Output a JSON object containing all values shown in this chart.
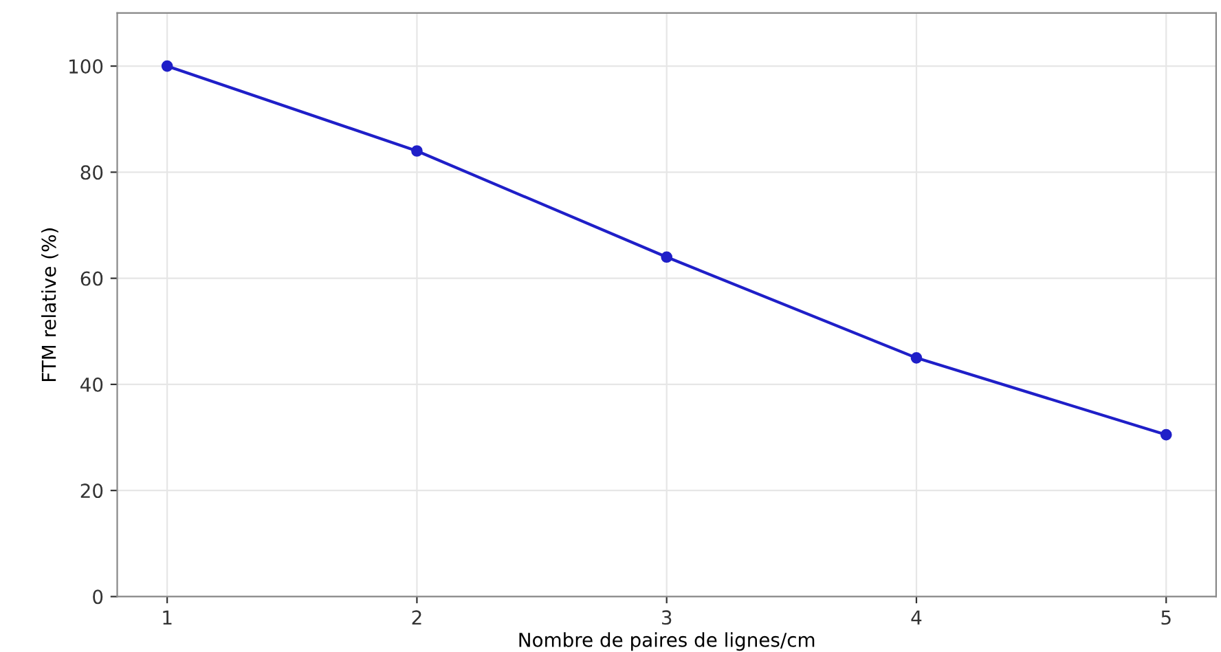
{
  "chart_data": {
    "type": "line",
    "xlabel": "Nombre de paires de lignes/cm",
    "ylabel": "FTM relative (%)",
    "x": [
      1,
      2,
      3,
      4,
      5
    ],
    "series": [
      {
        "color": "#1f1fc8",
        "values": [
          100,
          84,
          64,
          45,
          30.5
        ]
      }
    ],
    "xlim": [
      0.8,
      5.2
    ],
    "ylim": [
      0,
      110
    ],
    "xticks": [
      1,
      2,
      3,
      4,
      5
    ],
    "yticks": [
      0,
      20,
      40,
      60,
      80,
      100
    ],
    "grid": true,
    "marker": "circle",
    "line_style": "solid"
  }
}
